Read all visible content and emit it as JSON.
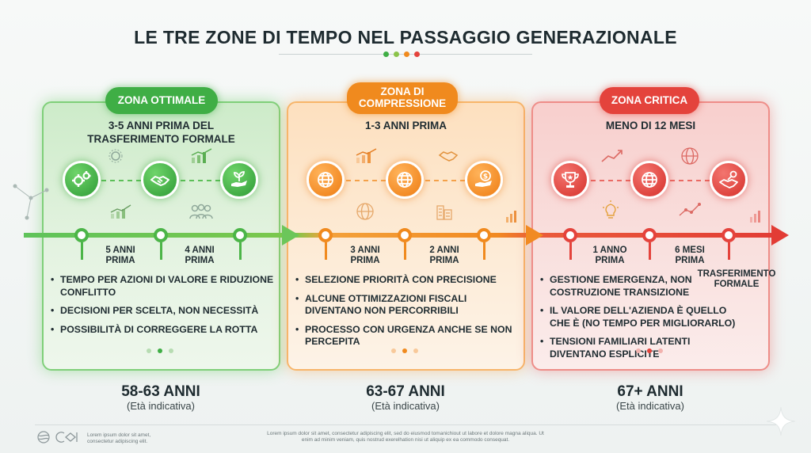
{
  "title": "LE TRE ZONE DI TEMPO NEL PASSAGGIO GENERAZIONALE",
  "colors": {
    "green": "#3fae45",
    "orange": "#f08a1e",
    "red": "#e4433c"
  },
  "zones": [
    {
      "name": "ZONA OTTIMALE",
      "subtitle_line1": "3-5 ANNI PRIMA DEL",
      "subtitle_line2": "TRASFERIMENTO FORMALE",
      "icons": [
        "gears-icon",
        "handshake-icon",
        "plant-in-hand-icon"
      ],
      "markers": [
        {
          "line1": "5 ANNI",
          "line2": "PRIMA"
        },
        {
          "line1": "4 ANNI",
          "line2": "PRIMA"
        }
      ],
      "bullets": [
        "TEMPO PER AZIONI DI VALORE E RIDUZIONE CONFLITTO",
        "DECISIONI PER SCELTA, NON NECESSITÀ",
        "POSSIBILITÀ DI CORREGGERE LA ROTTA"
      ],
      "age": "58-63 ANNI",
      "age_note": "(Età indicativa)"
    },
    {
      "name_line1": "ZONA DI",
      "name_line2": "COMPRESSIONE",
      "subtitle_line1": "1-3 ANNI PRIMA",
      "icons": [
        "globe-network-icon",
        "globe-network-icon",
        "coin-in-hand-icon"
      ],
      "markers": [
        {
          "line1": "3 ANNI",
          "line2": "PRIMA"
        },
        {
          "line1": "2 ANNI",
          "line2": "PRIMA"
        }
      ],
      "bullets": [
        "SELEZIONE PRIORITÀ CON PRECISIONE",
        "ALCUNE OTTIMIZZAZIONI FISCALI DIVENTANO NON PERCORRIBILI",
        "PROCESSO CON URGENZA ANCHE SE NON PERCEPITA"
      ],
      "age": "63-67 ANNI",
      "age_note": "(Età indicativa)"
    },
    {
      "name": "ZONA CRITICA",
      "subtitle_line1": "MENO DI 12 MESI",
      "icons": [
        "trophy-icon",
        "globe-network-icon",
        "key-handshake-icon"
      ],
      "markers": [
        {
          "line1": "1 ANNO",
          "line2": "PRIMA"
        },
        {
          "line1": "6 MESI",
          "line2": "PRIMA"
        },
        {
          "line1": "TRASFERIMENTO",
          "line2": "FORMALE"
        }
      ],
      "bullets": [
        "GESTIONE EMERGENZA, NON COSTRUZIONE TRANSIZIONE",
        "IL VALORE DELL'AZIENDA È QUELLO CHE È (NO TEMPO PER MIGLIORARLO)",
        "TENSIONI FAMILIARI LATENTI DIVENTANO ESPLICITE"
      ],
      "age": "67+ ANNI",
      "age_note": "(Età indicativa)"
    }
  ],
  "footer": {
    "left": "Lorem ipsum dolor sit amet, consectetur adipiscing elit.",
    "center": "Lorem ipsum dolor sit amet, consectetur adipiscing elit, sed do eiusmod tomanichiout ut labore et dolore magna aliqua. Ut enim ad minim veniam, quis nostrud exerelhation nisi ut aliquip ex ea commodo consequat."
  }
}
